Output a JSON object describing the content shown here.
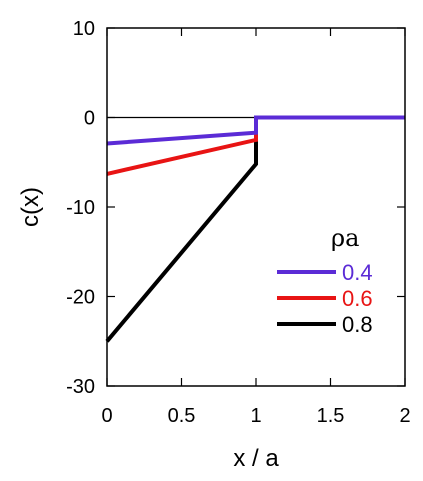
{
  "chart_data": {
    "type": "line",
    "xlabel": "x / a",
    "ylabel": "c(x)",
    "xlim": [
      0,
      2
    ],
    "ylim": [
      -30,
      10
    ],
    "xticks": [
      0,
      0.5,
      1,
      1.5,
      2
    ],
    "xtick_labels": [
      "0",
      "0.5",
      "1",
      "1.5",
      "2"
    ],
    "yticks": [
      -30,
      -20,
      -10,
      0,
      10
    ],
    "ytick_labels": [
      "-30",
      "-20",
      "-10",
      "0",
      "10"
    ],
    "grid": false,
    "zero_line": true,
    "legend": {
      "title": "ρa",
      "placement": "right-center"
    },
    "series": [
      {
        "name": "0.4",
        "color": "#5b2bd6",
        "points": [
          [
            0,
            -2.9
          ],
          [
            1,
            -1.7
          ],
          [
            1,
            0
          ],
          [
            2,
            0
          ]
        ]
      },
      {
        "name": "0.6",
        "color": "#e81414",
        "points": [
          [
            0,
            -6.3
          ],
          [
            1,
            -2.5
          ],
          [
            1,
            0
          ],
          [
            2,
            0
          ]
        ]
      },
      {
        "name": "0.8",
        "color": "#000000",
        "points": [
          [
            0,
            -25.0
          ],
          [
            1,
            -5.2
          ],
          [
            1,
            0
          ],
          [
            2,
            0
          ]
        ]
      }
    ]
  }
}
